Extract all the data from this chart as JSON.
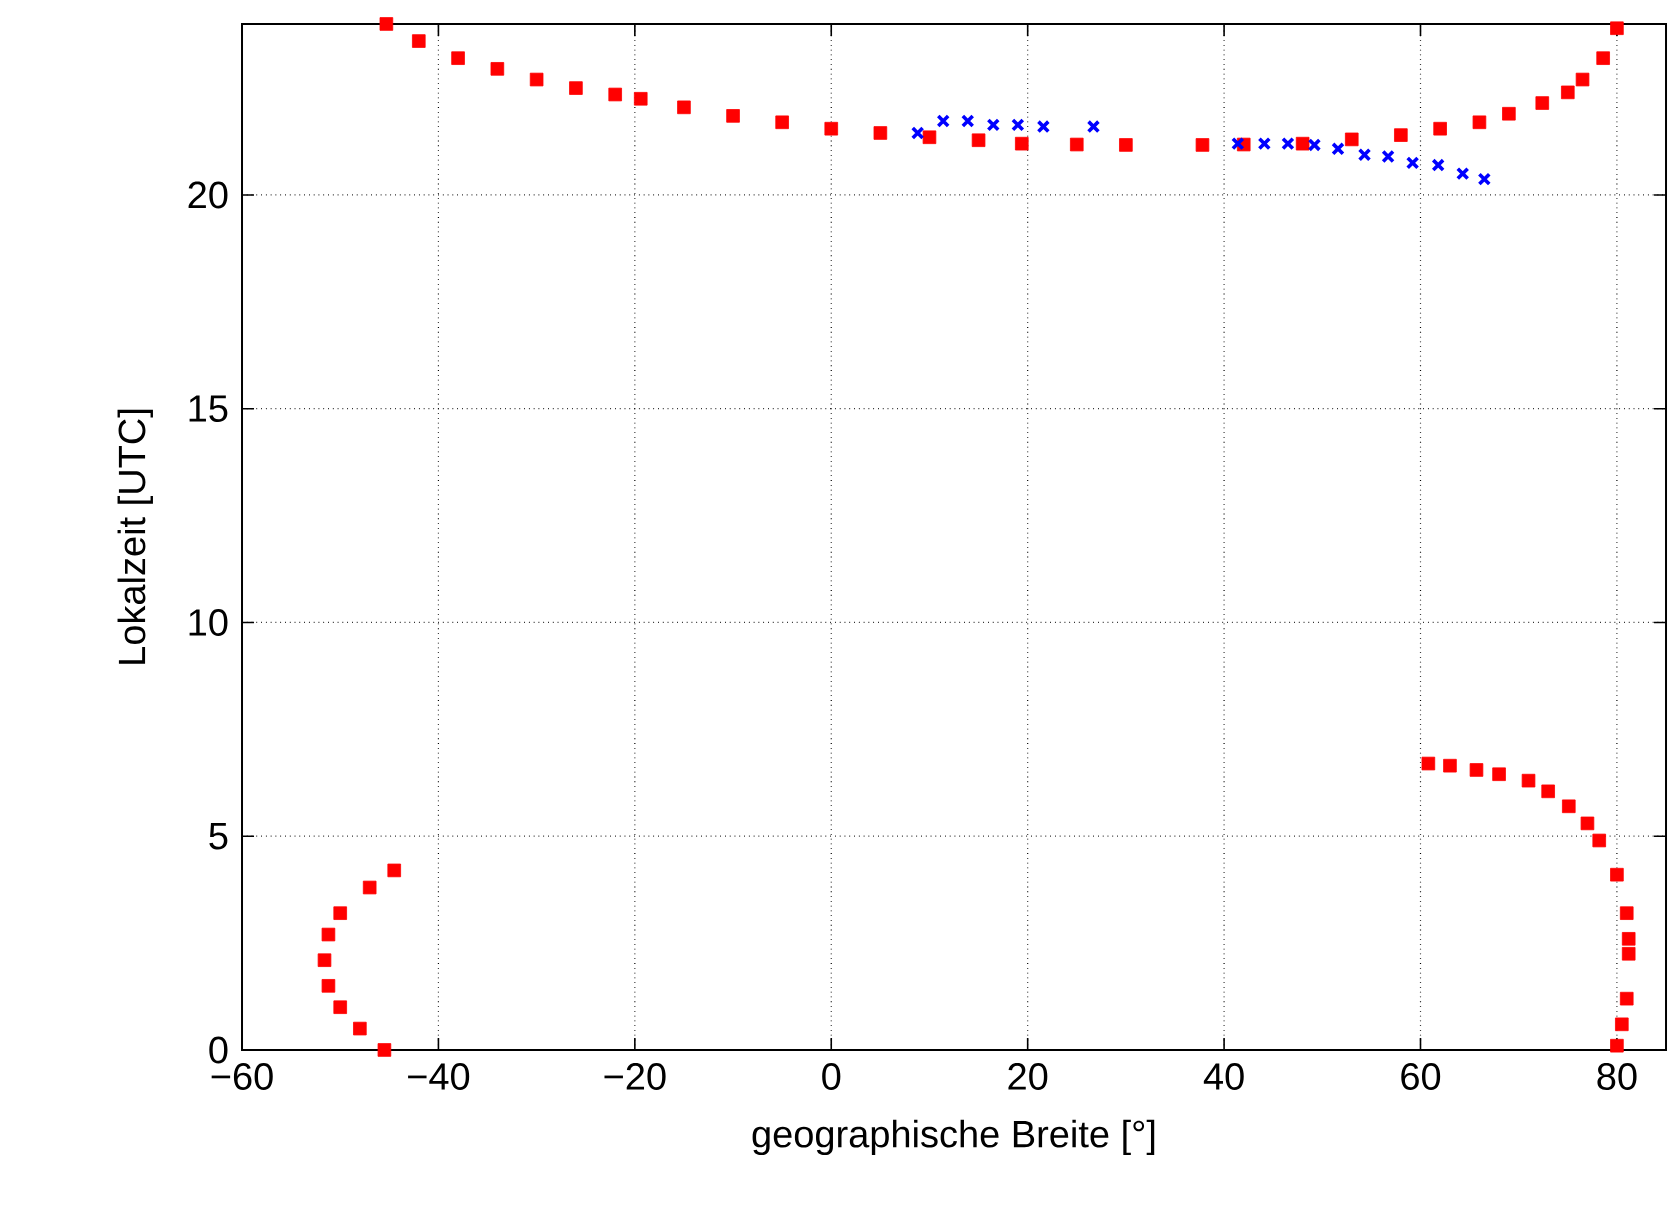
{
  "chart_data": {
    "type": "scatter",
    "xlabel": "geographische Breite [°]",
    "ylabel": "Lokalzeit [UTC]",
    "xlim": [
      -60,
      85
    ],
    "ylim": [
      0,
      24
    ],
    "xticks": [
      {
        "value": -60,
        "label": "−60"
      },
      {
        "value": -40,
        "label": "−40"
      },
      {
        "value": -20,
        "label": "−20"
      },
      0,
      20,
      40,
      60,
      80
    ],
    "yticks": [
      0,
      5,
      10,
      15,
      20
    ],
    "grid": true,
    "series": [
      {
        "color": "#ff0000",
        "marker": "square",
        "x": [
          -45.3,
          -42,
          -38,
          -34,
          -30,
          -26,
          -22,
          -19.4,
          -15,
          -10,
          -5,
          0,
          5,
          10,
          15,
          19.4,
          25,
          30,
          37.8,
          42,
          48,
          53,
          58,
          62,
          66,
          69,
          72.4,
          75,
          76.5,
          78.6,
          80,
          -44.5,
          -47,
          -50,
          -51.2,
          -51.6,
          -51.2,
          -50,
          -48,
          -45.5,
          60.8,
          63,
          65.7,
          68,
          71,
          73,
          75.1,
          77,
          78.2,
          80,
          81,
          81.2,
          81.2,
          81,
          80.5,
          80
        ],
        "values": [
          24,
          23.6,
          23.2,
          22.95,
          22.7,
          22.5,
          22.35,
          22.25,
          22.05,
          21.85,
          21.7,
          21.55,
          21.45,
          21.35,
          21.28,
          21.2,
          21.18,
          21.17,
          21.17,
          21.18,
          21.2,
          21.3,
          21.4,
          21.55,
          21.7,
          21.9,
          22.15,
          22.4,
          22.7,
          23.2,
          23.9,
          4.2,
          3.8,
          3.2,
          2.7,
          2.1,
          1.5,
          1.0,
          0.5,
          0,
          6.7,
          6.65,
          6.55,
          6.45,
          6.3,
          6.05,
          5.7,
          5.3,
          4.9,
          4.1,
          3.2,
          2.6,
          2.25,
          1.2,
          0.6,
          0.1
        ]
      },
      {
        "color": "#0000ff",
        "marker": "cross",
        "x": [
          8.8,
          11.4,
          13.9,
          16.5,
          19,
          21.6,
          26.7,
          41.4,
          44.1,
          46.5,
          49.2,
          51.6,
          54.3,
          56.7,
          59.2,
          61.8,
          64.3,
          66.5
        ],
        "values": [
          21.45,
          21.73,
          21.73,
          21.64,
          21.64,
          21.6,
          21.6,
          21.2,
          21.2,
          21.2,
          21.17,
          21.08,
          20.94,
          20.9,
          20.75,
          20.7,
          20.5,
          20.37
        ]
      }
    ]
  }
}
